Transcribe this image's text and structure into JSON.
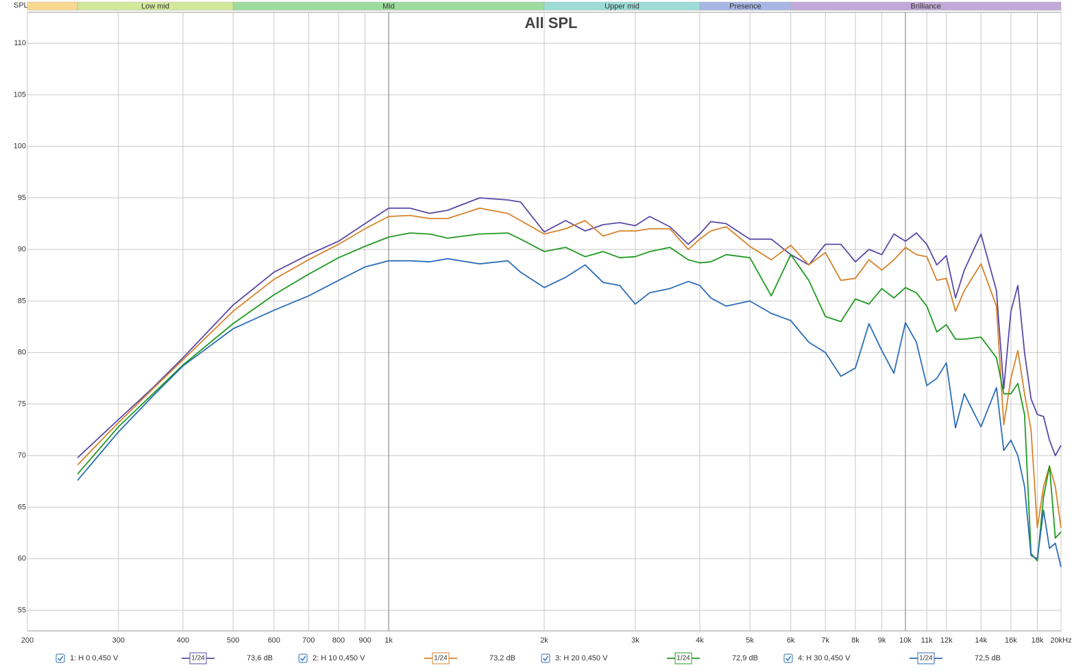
{
  "chart_data": {
    "type": "line",
    "title": "All SPL",
    "y_label": "SPL",
    "x": [
      250,
      300,
      350,
      400,
      500,
      600,
      700,
      800,
      900,
      1000,
      1100,
      1200,
      1300,
      1500,
      1700,
      1800,
      2000,
      2200,
      2400,
      2600,
      2800,
      3000,
      3200,
      3500,
      3800,
      4000,
      4200,
      4500,
      5000,
      5500,
      6000,
      6500,
      7000,
      7500,
      8000,
      8500,
      9000,
      9500,
      10000,
      10500,
      11000,
      11500,
      12000,
      12500,
      13000,
      14000,
      15000,
      15500,
      16000,
      16500,
      17000,
      17500,
      18000,
      18500,
      19000,
      19500,
      20000
    ],
    "series": [
      {
        "name": "1: H 0 0,450 V",
        "smoothing": "1/24",
        "level": "73,6 dB",
        "color": "#5a47a6",
        "values": [
          69.8,
          73.5,
          76.6,
          79.5,
          84.6,
          87.8,
          89.5,
          90.8,
          92.5,
          94.0,
          94.0,
          93.5,
          93.8,
          95.0,
          94.8,
          94.6,
          91.7,
          92.8,
          91.8,
          92.4,
          92.6,
          92.3,
          93.2,
          92.2,
          90.5,
          91.5,
          92.7,
          92.5,
          91.0,
          91.0,
          89.5,
          88.5,
          90.5,
          90.5,
          88.8,
          90.0,
          89.5,
          91.5,
          90.8,
          91.6,
          90.5,
          88.5,
          89.4,
          85.3,
          88.0,
          91.5,
          86.0,
          76.5,
          84.0,
          86.5,
          80.0,
          75.5,
          74.0,
          73.8,
          71.5,
          70.0,
          71.0
        ]
      },
      {
        "name": "2: H 10 0,450 V",
        "smoothing": "1/24",
        "level": "73,2 dB",
        "color": "#d6822b",
        "values": [
          69.1,
          73.2,
          76.5,
          79.3,
          84.0,
          87.1,
          89.0,
          90.5,
          92.0,
          93.2,
          93.3,
          93.0,
          93.0,
          94.0,
          93.5,
          92.8,
          91.5,
          92.0,
          92.8,
          91.3,
          91.8,
          91.8,
          92.0,
          92.0,
          90.0,
          91.0,
          91.8,
          92.2,
          90.3,
          89.0,
          90.4,
          88.5,
          89.7,
          87.0,
          87.2,
          89.0,
          88.0,
          89.0,
          90.2,
          89.5,
          89.3,
          87.0,
          87.2,
          84.0,
          86.0,
          88.6,
          84.5,
          73.0,
          77.5,
          80.2,
          76.0,
          72.5,
          63.0,
          67.0,
          69.0,
          67.0,
          63.0
        ]
      },
      {
        "name": "3: H 20 0,450 V",
        "smoothing": "1/24",
        "level": "72,9 dB",
        "color": "#1f9a1f",
        "values": [
          68.2,
          72.8,
          76.0,
          78.8,
          82.8,
          85.6,
          87.6,
          89.2,
          90.3,
          91.2,
          91.6,
          91.5,
          91.1,
          91.5,
          91.6,
          91.0,
          89.8,
          90.2,
          89.3,
          89.8,
          89.2,
          89.3,
          89.8,
          90.2,
          89.0,
          88.7,
          88.8,
          89.5,
          89.2,
          85.5,
          89.5,
          87.0,
          83.5,
          83.0,
          85.2,
          84.7,
          86.2,
          85.3,
          86.3,
          85.8,
          84.5,
          82.0,
          82.7,
          81.3,
          81.3,
          81.5,
          79.5,
          76.0,
          76.0,
          77.0,
          74.0,
          60.5,
          59.8,
          66.0,
          69.0,
          62.0,
          62.6
        ]
      },
      {
        "name": "4: H 30 0,450 V",
        "smoothing": "1/24",
        "level": "72,5 dB",
        "color": "#2a6db5",
        "values": [
          67.6,
          72.3,
          75.8,
          78.7,
          82.3,
          84.1,
          85.5,
          87.0,
          88.3,
          88.9,
          88.9,
          88.8,
          89.1,
          88.6,
          88.9,
          87.8,
          86.3,
          87.3,
          88.5,
          86.8,
          86.5,
          84.7,
          85.8,
          86.2,
          86.9,
          86.5,
          85.3,
          84.5,
          85.0,
          83.8,
          83.1,
          81.0,
          80.0,
          77.7,
          78.5,
          82.8,
          80.2,
          78.0,
          82.9,
          81.0,
          76.8,
          77.5,
          79.0,
          72.7,
          76.0,
          72.8,
          76.6,
          70.5,
          71.5,
          70.0,
          67.0,
          60.3,
          60.0,
          64.7,
          61.0,
          61.5,
          59.2
        ]
      }
    ],
    "log_x": true,
    "xlim": [
      200,
      20000
    ],
    "xticks": [
      200,
      300,
      400,
      500,
      600,
      700,
      800,
      900,
      {
        "value": 1000,
        "label": "1k"
      },
      {
        "value": 2000,
        "label": "2k"
      },
      {
        "value": 3000,
        "label": "3k"
      },
      {
        "value": 4000,
        "label": "4k"
      },
      {
        "value": 5000,
        "label": "5k"
      },
      {
        "value": 6000,
        "label": "6k"
      },
      {
        "value": 7000,
        "label": "7k"
      },
      {
        "value": 8000,
        "label": "8k"
      },
      {
        "value": 9000,
        "label": "9k"
      },
      {
        "value": 10000,
        "label": "10k"
      },
      {
        "value": 11000,
        "label": "11k"
      },
      {
        "value": 12000,
        "label": "12k"
      },
      {
        "value": 14000,
        "label": "14k"
      },
      {
        "value": 16000,
        "label": "16k"
      },
      {
        "value": 18000,
        "label": "18k"
      },
      {
        "value": 20000,
        "label": "20kHz"
      }
    ],
    "ylim": [
      53,
      113
    ],
    "yticks": [
      55,
      60,
      65,
      70,
      75,
      80,
      85,
      90,
      95,
      100,
      105,
      110
    ],
    "grid": true,
    "bands": [
      {
        "name": null,
        "range": [
          200,
          250
        ],
        "color": "#f9d98f"
      },
      {
        "name": "Low mid",
        "range": [
          250,
          500
        ],
        "color": "#d4e89a"
      },
      {
        "name": "Mid",
        "range": [
          500,
          2000
        ],
        "color": "#9ddc9f"
      },
      {
        "name": "Upper mid",
        "range": [
          2000,
          4000
        ],
        "color": "#9ddcd6"
      },
      {
        "name": "Presence",
        "range": [
          4000,
          6000
        ],
        "color": "#a8b6e4"
      },
      {
        "name": "Brilliance",
        "range": [
          6000,
          20000
        ],
        "color": "#c3a9da"
      }
    ]
  }
}
